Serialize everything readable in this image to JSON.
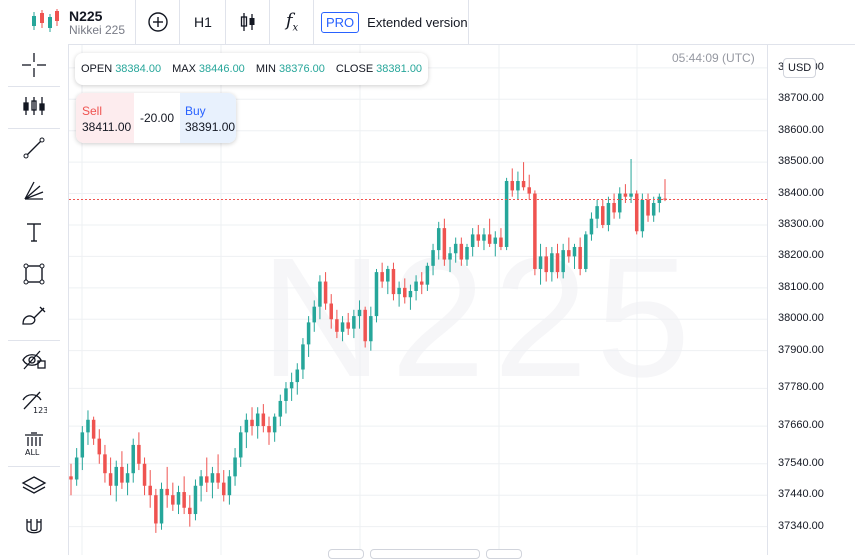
{
  "header": {
    "symbol": "N225",
    "description": "Nikkei 225",
    "timeframe": "H1",
    "fx_label": "f",
    "fx_sub": "x",
    "pro_label": "PRO",
    "extended_label": "Extended version"
  },
  "ohlc": {
    "open_label": "OPEN",
    "open": "38384.00",
    "max_label": "MAX",
    "max": "38446.00",
    "min_label": "MIN",
    "min": "38376.00",
    "close_label": "CLOSE",
    "close": "38381.00"
  },
  "trade": {
    "sell_label": "Sell",
    "sell_price": "38411.00",
    "spread": "-20.00",
    "buy_label": "Buy",
    "buy_price": "38391.00"
  },
  "clock": "05:44:09 (UTC)",
  "currency": "USD",
  "watermark": "N225",
  "colors": {
    "up": "#26a69a",
    "down": "#ef5350",
    "current_line": "#ef5350"
  },
  "toolbar_icons": [
    "crosshair-icon",
    "indicators-icon",
    "trend-line-icon",
    "fib-icon",
    "text-icon",
    "rectangle-icon",
    "brush-icon",
    "hide-icon",
    "hide-numbers-icon",
    "delete-all-icon",
    "layers-icon",
    "magnet-icon"
  ],
  "chart_data": {
    "type": "candlestick",
    "title": "",
    "xlabel": "",
    "ylabel": "",
    "current_price": 38381,
    "y_ticks": [
      "38800.00",
      "38700.00",
      "38600.00",
      "38500.00",
      "38400.00",
      "38300.00",
      "38200.00",
      "38100.00",
      "38000.00",
      "37900.00",
      "37780.00",
      "37660.00",
      "37540.00",
      "37440.00",
      "37340.00"
    ],
    "candles": [
      [
        37500,
        37540,
        37440,
        37490
      ],
      [
        37490,
        37590,
        37470,
        37560
      ],
      [
        37560,
        37660,
        37520,
        37640
      ],
      [
        37640,
        37710,
        37600,
        37680
      ],
      [
        37680,
        37690,
        37600,
        37620
      ],
      [
        37620,
        37650,
        37540,
        37570
      ],
      [
        37570,
        37600,
        37480,
        37510
      ],
      [
        37510,
        37560,
        37440,
        37470
      ],
      [
        37470,
        37550,
        37420,
        37530
      ],
      [
        37530,
        37580,
        37460,
        37480
      ],
      [
        37480,
        37540,
        37440,
        37510
      ],
      [
        37510,
        37620,
        37480,
        37600
      ],
      [
        37600,
        37640,
        37520,
        37540
      ],
      [
        37540,
        37560,
        37440,
        37470
      ],
      [
        37470,
        37520,
        37400,
        37440
      ],
      [
        37440,
        37460,
        37320,
        37350
      ],
      [
        37350,
        37480,
        37330,
        37460
      ],
      [
        37460,
        37530,
        37400,
        37440
      ],
      [
        37440,
        37480,
        37390,
        37410
      ],
      [
        37410,
        37470,
        37380,
        37450
      ],
      [
        37450,
        37500,
        37380,
        37400
      ],
      [
        37400,
        37440,
        37340,
        37380
      ],
      [
        37380,
        37490,
        37360,
        37470
      ],
      [
        37470,
        37520,
        37420,
        37500
      ],
      [
        37500,
        37560,
        37450,
        37480
      ],
      [
        37480,
        37530,
        37430,
        37510
      ],
      [
        37510,
        37570,
        37460,
        37480
      ],
      [
        37480,
        37520,
        37420,
        37440
      ],
      [
        37440,
        37520,
        37410,
        37500
      ],
      [
        37500,
        37590,
        37470,
        37560
      ],
      [
        37560,
        37660,
        37530,
        37640
      ],
      [
        37640,
        37700,
        37590,
        37680
      ],
      [
        37680,
        37720,
        37630,
        37660
      ],
      [
        37660,
        37720,
        37620,
        37700
      ],
      [
        37700,
        37730,
        37640,
        37660
      ],
      [
        37660,
        37690,
        37600,
        37640
      ],
      [
        37640,
        37700,
        37610,
        37690
      ],
      [
        37690,
        37760,
        37660,
        37740
      ],
      [
        37740,
        37800,
        37700,
        37780
      ],
      [
        37780,
        37830,
        37740,
        37800
      ],
      [
        37800,
        37860,
        37760,
        37840
      ],
      [
        37840,
        37940,
        37810,
        37920
      ],
      [
        37920,
        38010,
        37880,
        37990
      ],
      [
        37990,
        38060,
        37960,
        38040
      ],
      [
        38040,
        38140,
        38000,
        38120
      ],
      [
        38120,
        38150,
        38030,
        38050
      ],
      [
        38050,
        38080,
        37970,
        38000
      ],
      [
        38000,
        38030,
        37940,
        37960
      ],
      [
        37960,
        38010,
        37930,
        37990
      ],
      [
        37990,
        38020,
        37950,
        37970
      ],
      [
        37970,
        38030,
        37940,
        38010
      ],
      [
        38010,
        38060,
        37970,
        38030
      ],
      [
        38030,
        38040,
        37910,
        37930
      ],
      [
        37930,
        38040,
        37900,
        38010
      ],
      [
        38010,
        38160,
        37990,
        38150
      ],
      [
        38150,
        38180,
        38100,
        38120
      ],
      [
        38120,
        38170,
        38080,
        38160
      ],
      [
        38160,
        38180,
        38060,
        38080
      ],
      [
        38080,
        38120,
        38040,
        38100
      ],
      [
        38100,
        38130,
        38050,
        38070
      ],
      [
        38070,
        38110,
        38030,
        38090
      ],
      [
        38090,
        38140,
        38060,
        38120
      ],
      [
        38120,
        38150,
        38080,
        38110
      ],
      [
        38110,
        38180,
        38090,
        38170
      ],
      [
        38170,
        38240,
        38140,
        38220
      ],
      [
        38220,
        38310,
        38190,
        38290
      ],
      [
        38290,
        38320,
        38170,
        38190
      ],
      [
        38190,
        38230,
        38150,
        38210
      ],
      [
        38210,
        38260,
        38180,
        38240
      ],
      [
        38240,
        38260,
        38170,
        38190
      ],
      [
        38190,
        38240,
        38170,
        38230
      ],
      [
        38230,
        38290,
        38200,
        38270
      ],
      [
        38270,
        38300,
        38230,
        38250
      ],
      [
        38250,
        38290,
        38220,
        38270
      ],
      [
        38270,
        38320,
        38230,
        38240
      ],
      [
        38240,
        38280,
        38200,
        38260
      ],
      [
        38260,
        38290,
        38220,
        38230
      ],
      [
        38230,
        38450,
        38220,
        38440
      ],
      [
        38440,
        38480,
        38390,
        38410
      ],
      [
        38410,
        38470,
        38380,
        38440
      ],
      [
        38440,
        38500,
        38410,
        38420
      ],
      [
        38420,
        38460,
        38380,
        38400
      ],
      [
        38400,
        38410,
        38140,
        38160
      ],
      [
        38160,
        38240,
        38110,
        38200
      ],
      [
        38200,
        38230,
        38120,
        38150
      ],
      [
        38150,
        38230,
        38120,
        38210
      ],
      [
        38210,
        38240,
        38130,
        38150
      ],
      [
        38150,
        38240,
        38130,
        38220
      ],
      [
        38220,
        38260,
        38180,
        38200
      ],
      [
        38200,
        38240,
        38160,
        38230
      ],
      [
        38230,
        38260,
        38140,
        38160
      ],
      [
        38160,
        38280,
        38150,
        38270
      ],
      [
        38270,
        38340,
        38250,
        38320
      ],
      [
        38320,
        38380,
        38290,
        38360
      ],
      [
        38360,
        38380,
        38290,
        38300
      ],
      [
        38300,
        38390,
        38280,
        38370
      ],
      [
        38370,
        38400,
        38320,
        38340
      ],
      [
        38340,
        38420,
        38320,
        38400
      ],
      [
        38400,
        38430,
        38370,
        38390
      ],
      [
        38390,
        38510,
        38370,
        38400
      ],
      [
        38400,
        38410,
        38270,
        38280
      ],
      [
        38280,
        38400,
        38260,
        38380
      ],
      [
        38380,
        38400,
        38310,
        38330
      ],
      [
        38330,
        38390,
        38310,
        38370
      ],
      [
        38370,
        38400,
        38340,
        38390
      ],
      [
        38384,
        38446,
        38376,
        38381
      ]
    ]
  }
}
